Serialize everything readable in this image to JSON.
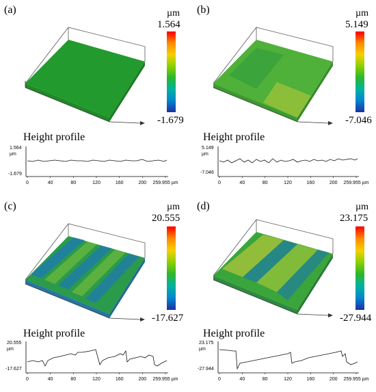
{
  "height_profile_label": "Height profile",
  "unit": "µm",
  "x_tick_labels": [
    "0",
    "40",
    "80",
    "120",
    "160",
    "200",
    "259.955"
  ],
  "x_tick_unit": "µm",
  "colorbar_colors": [
    "#ff0000",
    "#ff8800",
    "#f5d000",
    "#8cd000",
    "#2db62d",
    "#00b2a0",
    "#0086d0",
    "#2030a0"
  ],
  "panels": [
    {
      "label": "(a)",
      "max": "1.564",
      "min": "-1.679",
      "profile_max": "1.564",
      "profile_min": "-1.679",
      "profile_unit": "µm",
      "surface_color": "#229a2e"
    },
    {
      "label": "(b)",
      "max": "5.149",
      "min": "-7.046",
      "profile_max": "5.149",
      "profile_min": "-7.046",
      "profile_unit": "µm",
      "surface_color": "#4fb03a"
    },
    {
      "label": "(c)",
      "max": "20.555",
      "min": "-17.627",
      "profile_max": "20.555",
      "profile_min": "-17.627",
      "profile_unit": "µm",
      "surface_color": "#2b9a4a"
    },
    {
      "label": "(d)",
      "max": "23.175",
      "min": "-27.944",
      "profile_max": "23.175",
      "profile_min": "-27.944",
      "profile_unit": "µm",
      "surface_color": "#3aa53a"
    }
  ]
}
